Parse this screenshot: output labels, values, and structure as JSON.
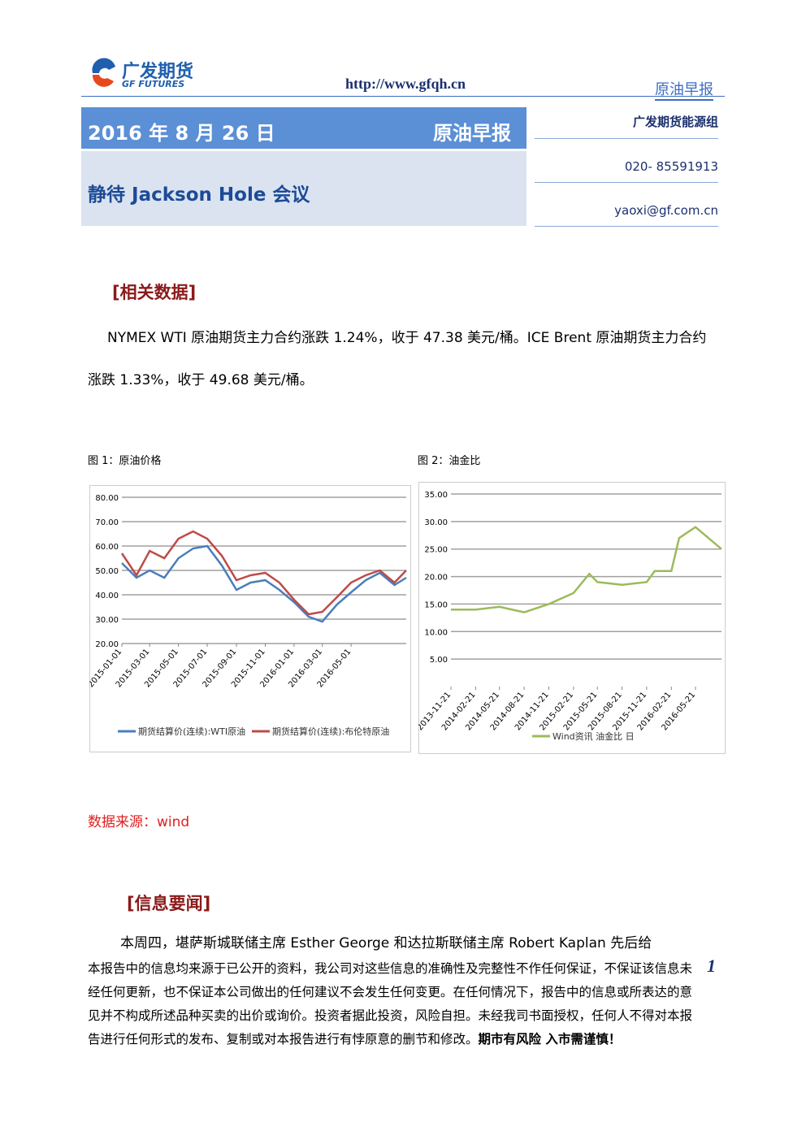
{
  "header": {
    "logo_cn": "广发期货",
    "logo_en": "GF FUTURES",
    "url": "http://www.gfqh.cn",
    "report_name": "原油早报"
  },
  "banner": {
    "date": "2016 年 8 月 26 日",
    "report_name": "原油早报",
    "headline": "静待 Jackson Hole 会议"
  },
  "contact": {
    "team": "广发期货能源组",
    "phone": "020- 85591913",
    "email": "yaoxi@gf.com.cn"
  },
  "section1": {
    "heading": "[相关数据]",
    "paragraph": "NYMEX WTI 原油期货主力合约涨跌 1.24%，收于 47.38 美元/桶。ICE Brent 原油期货主力合约涨跌 1.33%，收于 49.68 美元/桶。"
  },
  "chart_data": [
    {
      "type": "line",
      "title": "图 1：原油价格",
      "x": [
        "2015-01-01",
        "2015-02-01",
        "2015-03-01",
        "2015-04-01",
        "2015-05-01",
        "2015-06-01",
        "2015-07-01",
        "2015-08-01",
        "2015-09-01",
        "2015-10-01",
        "2015-11-01",
        "2015-12-01",
        "2016-01-01",
        "2016-02-01",
        "2016-03-01",
        "2016-04-01",
        "2016-05-01",
        "2016-06-01",
        "2016-07-01",
        "2016-08-01",
        "2016-08-26"
      ],
      "xlim": [
        "2015-01-01",
        "2016-08-26"
      ],
      "xticks": [
        "2015-01-01",
        "2015-03-01",
        "2015-05-01",
        "2015-07-01",
        "2015-09-01",
        "2015-11-01",
        "2016-01-01",
        "2016-03-01",
        "2016-05-01"
      ],
      "ylim": [
        20,
        80
      ],
      "yticks": [
        {
          "value": 20,
          "label": "20.00"
        },
        {
          "value": 30,
          "label": "30.00"
        },
        {
          "value": 40,
          "label": "40.00"
        },
        {
          "value": 50,
          "label": "50.00"
        },
        {
          "value": 60,
          "label": "60.00"
        },
        {
          "value": 70,
          "label": "70.00"
        },
        {
          "value": 80,
          "label": "80.00"
        }
      ],
      "grid": true,
      "legend": "bottom",
      "series": [
        {
          "name": "期货结算价(连续):WTI原油",
          "color": "#4a7ebb",
          "values": [
            53,
            47,
            50,
            47,
            55,
            59,
            60,
            52,
            42,
            45,
            46,
            42,
            37,
            31,
            29,
            36,
            41,
            46,
            49,
            44,
            47
          ]
        },
        {
          "name": "期货结算价(连续):布伦特原油",
          "color": "#be4b48",
          "values": [
            57,
            48,
            58,
            55,
            63,
            66,
            63,
            56,
            46,
            48,
            49,
            45,
            38,
            32,
            33,
            39,
            45,
            48,
            50,
            45,
            50
          ]
        }
      ]
    },
    {
      "type": "line",
      "title": "图 2：油金比",
      "x": [
        "2013-11-21",
        "2014-02-21",
        "2014-05-21",
        "2014-08-21",
        "2014-11-21",
        "2015-02-21",
        "2015-04-21",
        "2015-05-21",
        "2015-08-21",
        "2015-11-21",
        "2015-12-21",
        "2016-02-21",
        "2016-03-21",
        "2016-05-21",
        "2016-08-26"
      ],
      "xlim": [
        "2013-11-21",
        "2016-08-26"
      ],
      "xticks": [
        "2013-11-21",
        "2014-02-21",
        "2014-05-21",
        "2014-08-21",
        "2014-11-21",
        "2015-02-21",
        "2015-05-21",
        "2015-08-21",
        "2015-11-21",
        "2016-02-21",
        "2016-05-21"
      ],
      "ylim": [
        0,
        35
      ],
      "yticks": [
        {
          "value": 5,
          "label": "5.00"
        },
        {
          "value": 10,
          "label": "10.00"
        },
        {
          "value": 15,
          "label": "15.00"
        },
        {
          "value": 20,
          "label": "20.00"
        },
        {
          "value": 25,
          "label": "25.00"
        },
        {
          "value": 30,
          "label": "30.00"
        },
        {
          "value": 35,
          "label": "35.00"
        }
      ],
      "grid": true,
      "legend": "bottom",
      "series": [
        {
          "name": "Wind资讯 油金比 日",
          "color": "#9bbb59",
          "values": [
            14,
            14,
            14.5,
            13.5,
            15,
            17,
            20.5,
            19,
            18.5,
            19,
            21,
            21,
            27,
            29,
            25
          ]
        }
      ]
    }
  ],
  "source": "数据来源：wind",
  "section2": {
    "heading": "[信息要闻]",
    "paragraph": "本周四，堪萨斯城联储主席 Esther George 和达拉斯联储主席 Robert Kaplan 先后给"
  },
  "disclaimer": {
    "text": "本报告中的信息均来源于已公开的资料，我公司对这些信息的准确性及完整性不作任何保证，不保证该信息未经任何更新，也不保证本公司做出的任何建议不会发生任何变更。在任何情况下，报告中的信息或所表达的意见并不构成所述品种买卖的出价或询价。投资者据此投资，风险自担。未经我司书面授权，任何人不得对本报告进行任何形式的发布、复制或对本报告进行有悖原意的删节和修改。",
    "emphasis": "期市有风险 入市需谨慎！"
  },
  "page_number": "1"
}
